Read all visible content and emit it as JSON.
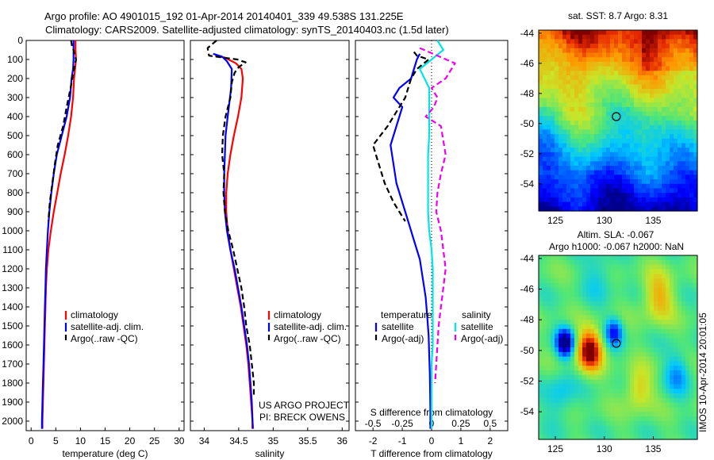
{
  "header": {
    "line1": "Argo profile: AO 4901015_192 01-Apr-2014 20140401_339 49.538S 131.225E",
    "line2": "Climatology: CARS2009. Satellite-adjusted climatology: synTS_20140403.nc (1.5d later)"
  },
  "colors": {
    "climatology": "#ff0000",
    "satellite": "#0000ff",
    "argo": "#000000",
    "sat_salinity": "#00e5e5",
    "argo_salinity": "#ee00ee"
  },
  "chart_data": [
    {
      "type": "line",
      "panel": "temperature",
      "xlabel": "temperature (deg C)",
      "ylabel": "",
      "xlim": [
        -1,
        31
      ],
      "ylim": [
        2050,
        0
      ],
      "xticks": [
        "0",
        "5",
        "10",
        "15",
        "20",
        "25",
        "30"
      ],
      "yticks": [
        "0",
        "100",
        "200",
        "300",
        "400",
        "500",
        "600",
        "700",
        "800",
        "900",
        "1000",
        "1100",
        "1200",
        "1300",
        "1400",
        "1500",
        "1600",
        "1700",
        "1800",
        "1900",
        "2000"
      ],
      "legend": [
        "climatology",
        "satellite-adj. clim.",
        "Argo(..raw -QC)"
      ],
      "series": [
        {
          "name": "climatology",
          "points": [
            [
              9.0,
              0
            ],
            [
              9.0,
              50
            ],
            [
              9.1,
              100
            ],
            [
              8.9,
              150
            ],
            [
              8.7,
              200
            ],
            [
              8.5,
              300
            ],
            [
              8.1,
              400
            ],
            [
              7.5,
              500
            ],
            [
              6.8,
              600
            ],
            [
              6.0,
              700
            ],
            [
              5.3,
              800
            ],
            [
              4.6,
              900
            ],
            [
              4.0,
              1000
            ],
            [
              3.5,
              1100
            ],
            [
              3.2,
              1200
            ],
            [
              3.0,
              1300
            ],
            [
              2.9,
              1400
            ],
            [
              2.8,
              1500
            ],
            [
              2.7,
              1600
            ],
            [
              2.6,
              1700
            ],
            [
              2.5,
              1800
            ],
            [
              2.4,
              1900
            ],
            [
              2.3,
              2000
            ],
            [
              2.3,
              2040
            ]
          ]
        },
        {
          "name": "satellite-adj. clim.",
          "points": [
            [
              8.6,
              0
            ],
            [
              8.6,
              50
            ],
            [
              8.6,
              100
            ],
            [
              8.5,
              150
            ],
            [
              8.2,
              200
            ],
            [
              7.9,
              300
            ],
            [
              7.2,
              400
            ],
            [
              6.2,
              500
            ],
            [
              5.2,
              600
            ],
            [
              4.6,
              700
            ],
            [
              4.1,
              800
            ],
            [
              3.7,
              900
            ],
            [
              3.4,
              1000
            ],
            [
              3.2,
              1100
            ],
            [
              3.0,
              1200
            ],
            [
              2.9,
              1300
            ],
            [
              2.8,
              1400
            ],
            [
              2.7,
              1500
            ],
            [
              2.6,
              1600
            ],
            [
              2.5,
              1700
            ],
            [
              2.4,
              1800
            ],
            [
              2.3,
              1900
            ],
            [
              2.2,
              2000
            ],
            [
              2.2,
              2040
            ]
          ]
        },
        {
          "name": "Argo(..raw -QC)",
          "points": [
            [
              8.1,
              0
            ],
            [
              8.3,
              30
            ],
            [
              8.6,
              50
            ],
            [
              9.1,
              100
            ],
            [
              8.7,
              150
            ],
            [
              8.0,
              250
            ],
            [
              7.2,
              350
            ],
            [
              6.5,
              450
            ],
            [
              5.4,
              550
            ],
            [
              4.8,
              650
            ],
            [
              4.3,
              750
            ],
            [
              3.8,
              850
            ],
            [
              3.5,
              950
            ]
          ]
        }
      ]
    },
    {
      "type": "line",
      "panel": "salinity",
      "xlabel": "salinity",
      "ylabel": "",
      "xlim": [
        33.8,
        36.1
      ],
      "ylim": [
        2050,
        0
      ],
      "xticks": [
        "34",
        "34.5",
        "35",
        "35.5",
        "36"
      ],
      "legend": [
        "climatology",
        "satellite-adj. clim.",
        "Argo(..raw -QC)"
      ],
      "annotation": [
        "US ARGO PROJECT",
        "PI: BRECK OWENS"
      ],
      "series": [
        {
          "name": "climatology",
          "points": [
            [
              34.16,
              80
            ],
            [
              34.3,
              90
            ],
            [
              34.46,
              120
            ],
            [
              34.54,
              150
            ],
            [
              34.56,
              200
            ],
            [
              34.54,
              300
            ],
            [
              34.49,
              400
            ],
            [
              34.43,
              500
            ],
            [
              34.38,
              600
            ],
            [
              34.34,
              700
            ],
            [
              34.32,
              800
            ],
            [
              34.32,
              900
            ],
            [
              34.34,
              1000
            ],
            [
              34.38,
              1100
            ],
            [
              34.43,
              1200
            ],
            [
              34.48,
              1300
            ],
            [
              34.53,
              1400
            ],
            [
              34.57,
              1500
            ],
            [
              34.61,
              1600
            ],
            [
              34.64,
              1700
            ],
            [
              34.66,
              1800
            ],
            [
              34.68,
              1900
            ],
            [
              34.7,
              2000
            ],
            [
              34.71,
              2040
            ]
          ]
        },
        {
          "name": "satellite-adj. clim.",
          "points": [
            [
              34.13,
              70
            ],
            [
              34.26,
              85
            ],
            [
              34.33,
              110
            ],
            [
              34.4,
              150
            ],
            [
              34.39,
              250
            ],
            [
              34.34,
              400
            ],
            [
              34.31,
              500
            ],
            [
              34.3,
              600
            ],
            [
              34.29,
              700
            ],
            [
              34.29,
              800
            ],
            [
              34.3,
              900
            ],
            [
              34.33,
              1000
            ],
            [
              34.38,
              1100
            ],
            [
              34.44,
              1200
            ],
            [
              34.49,
              1300
            ],
            [
              34.54,
              1400
            ],
            [
              34.58,
              1500
            ],
            [
              34.62,
              1600
            ],
            [
              34.65,
              1700
            ],
            [
              34.67,
              1800
            ],
            [
              34.69,
              1900
            ],
            [
              34.7,
              2000
            ],
            [
              34.7,
              2040
            ]
          ]
        },
        {
          "name": "Argo(..raw -QC)",
          "points": [
            [
              34.18,
              0
            ],
            [
              34.05,
              40
            ],
            [
              34.07,
              80
            ],
            [
              34.48,
              100
            ],
            [
              34.6,
              115
            ],
            [
              34.5,
              140
            ],
            [
              34.44,
              170
            ],
            [
              34.4,
              220
            ],
            [
              34.38,
              300
            ],
            [
              34.31,
              400
            ],
            [
              34.27,
              500
            ],
            [
              34.26,
              600
            ],
            [
              34.29,
              700
            ],
            [
              34.28,
              800
            ],
            [
              34.3,
              900
            ],
            [
              34.35,
              1000
            ],
            [
              34.42,
              1100
            ],
            [
              34.48,
              1200
            ],
            [
              34.54,
              1300
            ],
            [
              34.58,
              1400
            ],
            [
              34.61,
              1500
            ],
            [
              34.66,
              1600
            ],
            [
              34.69,
              1700
            ],
            [
              34.72,
              1800
            ],
            [
              34.72,
              1870
            ]
          ]
        }
      ]
    },
    {
      "type": "line",
      "panel": "difference",
      "xlabel": "T difference from climatology",
      "xlabel_top": "S difference from climatology",
      "ylabel": "",
      "xlim": [
        -2.6,
        2.6
      ],
      "ylim": [
        2050,
        0
      ],
      "xticks": [
        "-2",
        "-1",
        "0",
        "1",
        "2"
      ],
      "sticks": [
        "-0.5",
        "-0.25",
        "0",
        "0.25",
        "0.5"
      ],
      "legend": {
        "temperature_heading": "temperature",
        "salinity_heading": "salinity",
        "items": [
          "satellite",
          "Argo(-adj)",
          "satellite",
          "Argo(-adj)"
        ]
      },
      "series": [
        {
          "name": "satellite",
          "quantity": "temperature",
          "points": [
            [
              -0.4,
              70
            ],
            [
              -0.5,
              100
            ],
            [
              -0.6,
              150
            ],
            [
              -0.7,
              200
            ],
            [
              -1.1,
              250
            ],
            [
              -1.3,
              300
            ],
            [
              -1.0,
              350
            ],
            [
              -1.2,
              450
            ],
            [
              -1.4,
              550
            ],
            [
              -1.3,
              650
            ],
            [
              -1.2,
              750
            ],
            [
              -1.0,
              850
            ],
            [
              -0.8,
              950
            ],
            [
              -0.6,
              1050
            ],
            [
              -0.4,
              1150
            ],
            [
              -0.3,
              1250
            ],
            [
              -0.2,
              1350
            ],
            [
              -0.15,
              1450
            ],
            [
              -0.1,
              1550
            ],
            [
              -0.08,
              1650
            ],
            [
              -0.06,
              1750
            ],
            [
              -0.05,
              1850
            ],
            [
              -0.04,
              1950
            ],
            [
              -0.04,
              2040
            ]
          ]
        },
        {
          "name": "Argo(-adj)",
          "quantity": "temperature",
          "points": [
            [
              -0.6,
              60
            ],
            [
              -0.5,
              80
            ],
            [
              -0.1,
              100
            ],
            [
              -0.5,
              150
            ],
            [
              -0.7,
              200
            ],
            [
              -0.9,
              300
            ],
            [
              -1.5,
              450
            ],
            [
              -2.0,
              550
            ],
            [
              -1.8,
              650
            ],
            [
              -1.6,
              750
            ],
            [
              -1.3,
              850
            ],
            [
              -0.9,
              950
            ]
          ]
        },
        {
          "name": "satellite",
          "quantity": "salinity",
          "points": [
            [
              0.05,
              0
            ],
            [
              0.1,
              50
            ],
            [
              0.0,
              100
            ],
            [
              -0.1,
              150
            ],
            [
              -0.02,
              250
            ],
            [
              -0.02,
              400
            ],
            [
              -0.02,
              500
            ],
            [
              -0.03,
              600
            ],
            [
              -0.03,
              700
            ],
            [
              -0.03,
              800
            ],
            [
              -0.03,
              900
            ],
            [
              -0.02,
              1000
            ],
            [
              0.0,
              1100
            ],
            [
              0.01,
              1200
            ],
            [
              0.01,
              1300
            ],
            [
              0.01,
              1400
            ],
            [
              0.01,
              1500
            ],
            [
              0.01,
              1600
            ],
            [
              0.0,
              1700
            ],
            [
              0.0,
              1800
            ],
            [
              0.0,
              1900
            ],
            [
              0.0,
              2040
            ]
          ]
        },
        {
          "name": "Argo(-adj)",
          "quantity": "salinity",
          "points": [
            [
              -0.1,
              40
            ],
            [
              0.2,
              120
            ],
            [
              0.12,
              200
            ],
            [
              0.0,
              250
            ],
            [
              0.05,
              300
            ],
            [
              0.02,
              350
            ],
            [
              -0.05,
              400
            ],
            [
              0.08,
              450
            ],
            [
              0.12,
              600
            ],
            [
              0.08,
              700
            ],
            [
              0.05,
              800
            ],
            [
              0.04,
              900
            ],
            [
              0.08,
              1000
            ],
            [
              0.1,
              1100
            ],
            [
              0.12,
              1200
            ],
            [
              0.1,
              1300
            ],
            [
              0.08,
              1400
            ],
            [
              0.06,
              1500
            ],
            [
              0.05,
              1600
            ],
            [
              0.04,
              1700
            ],
            [
              0.03,
              1800
            ]
          ]
        }
      ]
    },
    {
      "type": "heatmap",
      "panel": "sst-map",
      "title": "sat. SST: 8.7 Argo: 8.31",
      "xticks": [
        "125",
        "130",
        "135"
      ],
      "yticks": [
        "-44",
        "-46",
        "-48",
        "-50",
        "-52",
        "-54"
      ],
      "xlim": [
        123.3,
        139.5
      ],
      "ylim": [
        -55.8,
        -43.8
      ],
      "marker": [
        131.225,
        -49.538
      ]
    },
    {
      "type": "heatmap",
      "panel": "sla-map",
      "title": "Altim. SLA: -0.067",
      "subtitle": "Argo h1000: -0.067 h2000: NaN",
      "side_label": "IMOS 10-Apr-2014 20:01:05",
      "xticks": [
        "125",
        "130",
        "135"
      ],
      "yticks": [
        "-44",
        "-46",
        "-48",
        "-50",
        "-52",
        "-54"
      ],
      "xlim": [
        123.3,
        139.5
      ],
      "ylim": [
        -55.8,
        -43.8
      ],
      "marker": [
        131.225,
        -49.538
      ]
    }
  ]
}
